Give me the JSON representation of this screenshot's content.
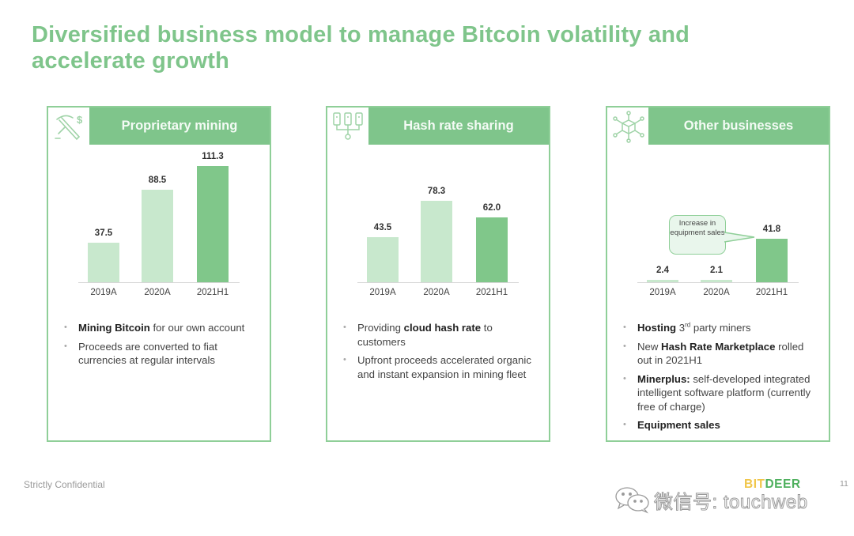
{
  "slide": {
    "title": "Diversified business model to manage Bitcoin volatility and accelerate growth",
    "footer_left": "Strictly Confidential",
    "page_number": "11",
    "brand": {
      "part1": "BIT",
      "part2": "DEER"
    },
    "watermark": "微信号: touchweb"
  },
  "colors": {
    "title_green": "#7fc58b",
    "band_green": "#7fc58b",
    "border_green": "#8fcf98",
    "bar_light": "#c8e8cd",
    "bar_dark": "#80c78a",
    "brand_yellow": "#f0c64a",
    "brand_green": "#4fb05e"
  },
  "cards": [
    {
      "title": "Proprietary mining",
      "icon": "pickaxe-dollar-icon",
      "bullets": [
        {
          "bold": "Mining Bitcoin",
          "text": " for our own account"
        },
        {
          "bold": "",
          "text": "Proceeds are converted to fiat currencies at regular intervals"
        }
      ]
    },
    {
      "title": "Hash rate sharing",
      "icon": "network-servers-icon",
      "bullets": [
        {
          "pre": "Providing ",
          "bold": "cloud hash rate",
          "text": " to customers"
        },
        {
          "bold": "",
          "text": "Upfront proceeds accelerated organic and instant expansion in mining fleet"
        }
      ]
    },
    {
      "title": "Other businesses",
      "icon": "hub-cube-icon",
      "callout": "Increase in equipment sales",
      "bullets": [
        {
          "bold": "Hosting",
          "text": " 3",
          "sup": "rd",
          "text2": " party miners"
        },
        {
          "pre": "New ",
          "bold": "Hash Rate Marketplace",
          "text": " rolled out in 2021H1"
        },
        {
          "bold": "Minerplus:",
          "text": " self-developed integrated intelligent software platform (currently free of charge)"
        },
        {
          "bold": "Equipment sales",
          "text": ""
        }
      ]
    }
  ],
  "chart_data": [
    {
      "type": "bar",
      "title": "Proprietary mining",
      "categories": [
        "2019A",
        "2020A",
        "2021H1"
      ],
      "values": [
        37.5,
        88.5,
        111.3
      ],
      "xlabel": "",
      "ylabel": "",
      "grid": false,
      "legend": "none",
      "value_labels": [
        "37.5",
        "88.5",
        "111.3"
      ]
    },
    {
      "type": "bar",
      "title": "Hash rate sharing",
      "categories": [
        "2019A",
        "2020A",
        "2021H1"
      ],
      "values": [
        43.5,
        78.3,
        62.0
      ],
      "xlabel": "",
      "ylabel": "",
      "grid": false,
      "legend": "none",
      "value_labels": [
        "43.5",
        "78.3",
        "62.0"
      ]
    },
    {
      "type": "bar",
      "title": "Other businesses",
      "categories": [
        "2019A",
        "2020A",
        "2021H1"
      ],
      "values": [
        2.4,
        2.1,
        41.8
      ],
      "xlabel": "",
      "ylabel": "",
      "grid": false,
      "legend": "none",
      "value_labels": [
        "2.4",
        "2.1",
        "41.8"
      ],
      "annotations": [
        {
          "text": "Increase in equipment sales",
          "target": "2021H1"
        }
      ]
    }
  ]
}
